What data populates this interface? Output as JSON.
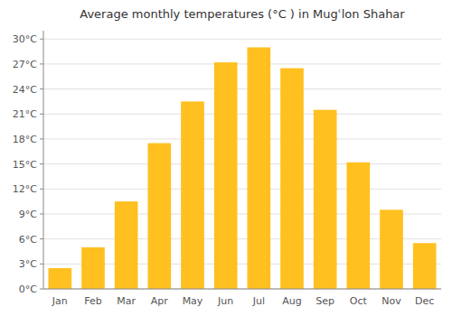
{
  "chart_data": {
    "type": "bar",
    "title": "Average monthly temperatures (°C ) in Mugʿ​lon Shahar",
    "categories": [
      "Jan",
      "Feb",
      "Mar",
      "Apr",
      "May",
      "Jun",
      "Jul",
      "Aug",
      "Sep",
      "Oct",
      "Nov",
      "Dec"
    ],
    "values": [
      2.5,
      5.0,
      10.5,
      17.5,
      22.5,
      27.2,
      29.0,
      26.5,
      21.5,
      15.2,
      9.5,
      5.5
    ],
    "color": "#FFC020",
    "ylim": [
      0,
      31
    ],
    "yticks": [
      {
        "value": 0,
        "label": "0°C"
      },
      {
        "value": 3,
        "label": "3°C"
      },
      {
        "value": 6,
        "label": "6°C"
      },
      {
        "value": 9,
        "label": "9°C"
      },
      {
        "value": 12,
        "label": "12°C"
      },
      {
        "value": 15,
        "label": "15°C"
      },
      {
        "value": 18,
        "label": "18°C"
      },
      {
        "value": 21,
        "label": "21°C"
      },
      {
        "value": 24,
        "label": "24°C"
      },
      {
        "value": 27,
        "label": "27°C"
      },
      {
        "value": 30,
        "label": "30°C"
      }
    ],
    "grid": true
  }
}
